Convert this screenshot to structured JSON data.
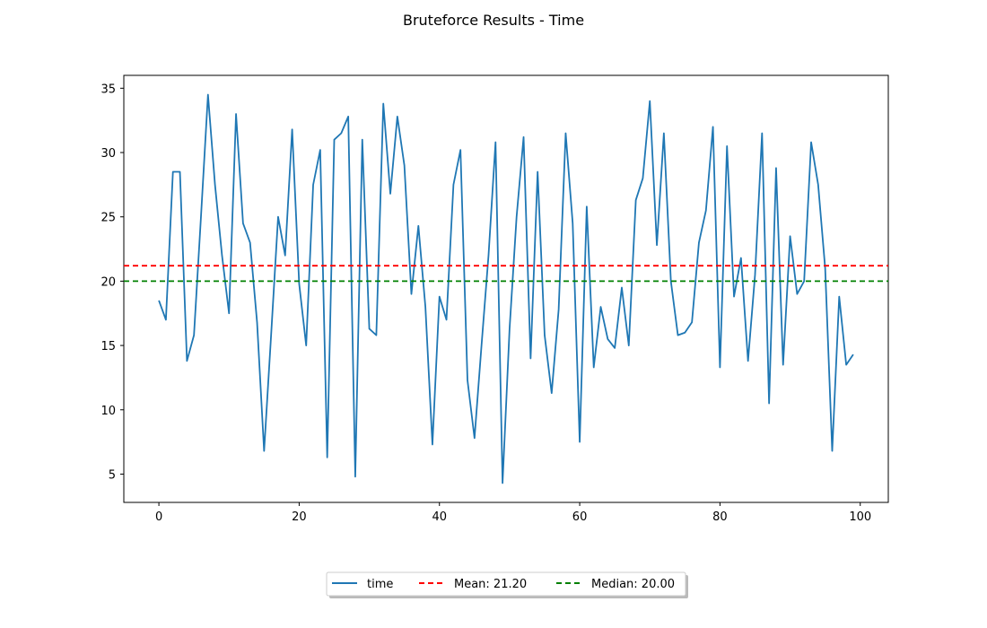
{
  "chart_data": {
    "type": "line",
    "title": "Bruteforce Results - Time",
    "xlabel": "",
    "ylabel": "",
    "xlim": [
      -5,
      104
    ],
    "ylim": [
      2.8,
      36.0
    ],
    "xticks": [
      0,
      20,
      40,
      60,
      80,
      100
    ],
    "yticks": [
      5,
      10,
      15,
      20,
      25,
      30,
      35
    ],
    "grid": false,
    "legend_position": "bottom-center",
    "series": [
      {
        "name": "time",
        "color": "#1f77b4",
        "style": "solid",
        "x": [
          0,
          1,
          2,
          3,
          4,
          5,
          6,
          7,
          8,
          9,
          10,
          11,
          12,
          13,
          14,
          15,
          16,
          17,
          18,
          19,
          20,
          21,
          22,
          23,
          24,
          25,
          26,
          27,
          28,
          29,
          30,
          31,
          32,
          33,
          34,
          35,
          36,
          37,
          38,
          39,
          40,
          41,
          42,
          43,
          44,
          45,
          46,
          47,
          48,
          49,
          50,
          51,
          52,
          53,
          54,
          55,
          56,
          57,
          58,
          59,
          60,
          61,
          62,
          63,
          64,
          65,
          66,
          67,
          68,
          69,
          70,
          71,
          72,
          73,
          74,
          75,
          76,
          77,
          78,
          79,
          80,
          81,
          82,
          83,
          84,
          85,
          86,
          87,
          88,
          89,
          90,
          91,
          92,
          93,
          94,
          95,
          96,
          97,
          98,
          99
        ],
        "values": [
          18.5,
          17.0,
          28.5,
          28.5,
          13.8,
          15.8,
          25.0,
          34.5,
          27.5,
          22.0,
          17.5,
          33.0,
          24.5,
          23.0,
          16.8,
          6.8,
          15.8,
          25.0,
          22.0,
          31.8,
          19.8,
          15.0,
          27.5,
          30.2,
          6.3,
          31.0,
          31.5,
          32.8,
          4.8,
          31.0,
          16.3,
          15.8,
          33.8,
          26.8,
          32.8,
          29.0,
          19.0,
          24.3,
          18.0,
          7.3,
          18.8,
          17.0,
          27.5,
          30.2,
          12.3,
          7.8,
          15.0,
          22.0,
          30.8,
          4.3,
          16.3,
          25.0,
          31.2,
          14.0,
          28.5,
          15.8,
          11.3,
          17.8,
          31.5,
          24.5,
          7.5,
          25.8,
          13.3,
          18.0,
          15.5,
          14.8,
          19.5,
          15.0,
          26.3,
          28.0,
          34.0,
          22.8,
          31.5,
          20.0,
          15.8,
          16.0,
          16.8,
          23.0,
          25.5,
          32.0,
          13.3,
          30.5,
          18.8,
          21.8,
          13.8,
          20.5,
          31.5,
          10.5,
          28.8,
          13.5,
          23.5,
          19.0,
          20.0,
          30.8,
          27.5,
          21.0,
          6.8,
          18.8,
          13.5,
          14.3
        ]
      },
      {
        "name": "Mean: 21.20",
        "color": "#ff0000",
        "style": "dashed",
        "value": 21.2
      },
      {
        "name": "Median: 20.00",
        "color": "#008000",
        "style": "dashed",
        "value": 20.0
      }
    ]
  }
}
